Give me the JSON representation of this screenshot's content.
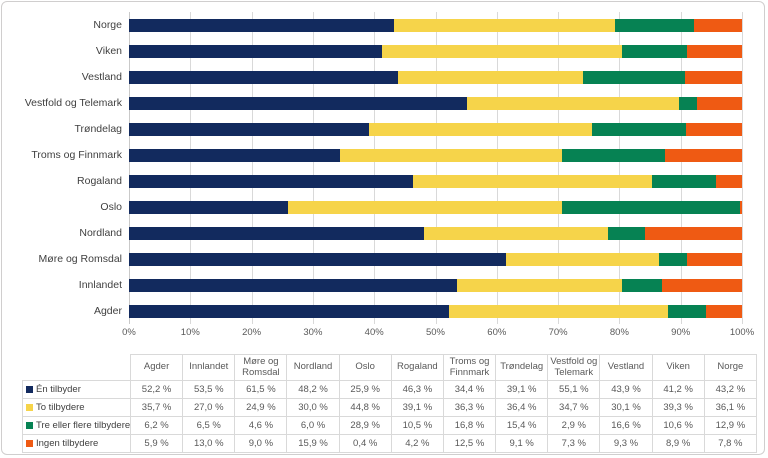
{
  "colors": {
    "one_provider": "#122A5E",
    "two_providers": "#F6D44A",
    "three_plus_providers": "#068253",
    "no_providers": "#EF5A13",
    "gridline": "#D9D9D9",
    "frame_border": "#D0CECE",
    "axis_text": "#595959",
    "label_text": "#3F3F3F"
  },
  "chart_data": {
    "type": "bar",
    "orientation": "horizontal",
    "stacked": true,
    "title": "",
    "xlabel": "",
    "ylabel": "",
    "xlim": [
      0,
      100
    ],
    "grid": true,
    "x_ticks": [
      "0%",
      "10%",
      "20%",
      "30%",
      "40%",
      "50%",
      "60%",
      "70%",
      "80%",
      "90%",
      "100%"
    ],
    "categories": [
      "Norge",
      "Viken",
      "Vestland",
      "Vestfold og Telemark",
      "Trøndelag",
      "Troms og Finnmark",
      "Rogaland",
      "Oslo",
      "Nordland",
      "Møre og Romsdal",
      "Innlandet",
      "Agder"
    ],
    "series": [
      {
        "name": "Én tilbyder",
        "color": "#122A5E",
        "values": [
          43.2,
          41.2,
          43.9,
          55.1,
          39.1,
          34.4,
          46.3,
          25.9,
          48.2,
          61.5,
          53.5,
          52.2
        ]
      },
      {
        "name": "To tilbydere",
        "color": "#F6D44A",
        "values": [
          36.1,
          39.3,
          30.1,
          34.7,
          36.4,
          36.3,
          39.1,
          44.8,
          30.0,
          24.9,
          27.0,
          35.7
        ]
      },
      {
        "name": "Tre eller flere tilbydere",
        "color": "#068253",
        "values": [
          12.9,
          10.6,
          16.6,
          2.9,
          15.4,
          16.8,
          10.5,
          28.9,
          6.0,
          4.6,
          6.5,
          6.2
        ]
      },
      {
        "name": "Ingen tilbydere",
        "color": "#EF5A13",
        "values": [
          7.8,
          8.9,
          9.3,
          7.3,
          9.1,
          12.5,
          4.2,
          0.4,
          15.9,
          9.0,
          13.0,
          5.9
        ]
      }
    ],
    "legend_position": "table-left-column"
  },
  "table": {
    "columns": [
      "Agder",
      "Innlandet",
      "Møre og Romsdal",
      "Nordland",
      "Oslo",
      "Rogaland",
      "Troms og Finnmark",
      "Trøndelag",
      "Vestfold og Telemark",
      "Vestland",
      "Viken",
      "Norge"
    ],
    "rows": [
      {
        "label": "Én tilbyder",
        "swatch": "#122A5E",
        "values": [
          "52,2 %",
          "53,5 %",
          "61,5 %",
          "48,2 %",
          "25,9 %",
          "46,3 %",
          "34,4 %",
          "39,1 %",
          "55,1 %",
          "43,9 %",
          "41,2 %",
          "43,2 %"
        ]
      },
      {
        "label": "To tilbydere",
        "swatch": "#F6D44A",
        "values": [
          "35,7 %",
          "27,0 %",
          "24,9 %",
          "30,0 %",
          "44,8 %",
          "39,1 %",
          "36,3 %",
          "36,4 %",
          "34,7 %",
          "30,1 %",
          "39,3 %",
          "36,1 %"
        ]
      },
      {
        "label": "Tre eller flere tilbydere",
        "swatch": "#068253",
        "values": [
          "6,2 %",
          "6,5 %",
          "4,6 %",
          "6,0 %",
          "28,9 %",
          "10,5 %",
          "16,8 %",
          "15,4 %",
          "2,9 %",
          "16,6 %",
          "10,6 %",
          "12,9 %"
        ]
      },
      {
        "label": "Ingen tilbydere",
        "swatch": "#EF5A13",
        "values": [
          "5,9 %",
          "13,0 %",
          "9,0 %",
          "15,9 %",
          "0,4 %",
          "4,2 %",
          "12,5 %",
          "9,1 %",
          "7,3 %",
          "9,3 %",
          "8,9 %",
          "7,8 %"
        ]
      }
    ]
  }
}
